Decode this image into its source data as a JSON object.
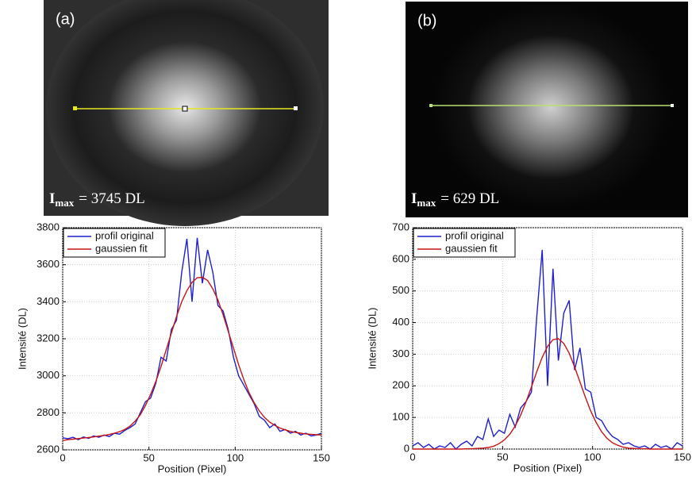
{
  "panels": [
    {
      "label": "(a)",
      "imax_symbol": "I",
      "imax_sub": "max",
      "imax_text": "= 3745 DL"
    },
    {
      "label": "(b)",
      "imax_symbol": "I",
      "imax_sub": "max",
      "imax_text": "= 629 DL"
    }
  ],
  "chart_data": [
    {
      "type": "line",
      "xlabel": "Position (Pixel)",
      "ylabel": "Intensité (DL)",
      "x": [
        0,
        3,
        6,
        9,
        12,
        15,
        18,
        21,
        24,
        27,
        30,
        33,
        36,
        39,
        42,
        45,
        48,
        51,
        54,
        57,
        60,
        63,
        66,
        69,
        72,
        75,
        78,
        81,
        84,
        87,
        90,
        93,
        96,
        99,
        102,
        105,
        108,
        111,
        114,
        117,
        120,
        123,
        126,
        129,
        132,
        135,
        138,
        141,
        144,
        147,
        150
      ],
      "series": [
        {
          "name": "profil original",
          "color": "#1f1fd0",
          "values": [
            2665,
            2660,
            2668,
            2655,
            2670,
            2662,
            2675,
            2668,
            2680,
            2672,
            2690,
            2685,
            2705,
            2720,
            2740,
            2800,
            2860,
            2880,
            2960,
            3100,
            3080,
            3250,
            3300,
            3560,
            3740,
            3400,
            3745,
            3500,
            3680,
            3560,
            3380,
            3350,
            3250,
            3100,
            3000,
            2950,
            2900,
            2850,
            2780,
            2760,
            2720,
            2740,
            2700,
            2710,
            2690,
            2700,
            2680,
            2690,
            2675,
            2680,
            2690
          ]
        },
        {
          "name": "gaussien fit",
          "color": "#c81414",
          "values": [
            2650,
            2655,
            2658,
            2661,
            2664,
            2667,
            2670,
            2674,
            2678,
            2683,
            2690,
            2698,
            2710,
            2728,
            2755,
            2790,
            2840,
            2900,
            2970,
            3050,
            3140,
            3230,
            3320,
            3400,
            3460,
            3505,
            3530,
            3532,
            3515,
            3470,
            3410,
            3330,
            3240,
            3150,
            3060,
            2980,
            2910,
            2855,
            2810,
            2775,
            2750,
            2732,
            2718,
            2708,
            2700,
            2694,
            2690,
            2686,
            2684,
            2682,
            2680
          ]
        }
      ],
      "xlim": [
        0,
        150
      ],
      "xticks": [
        0,
        50,
        100,
        150
      ],
      "ylim": [
        2600,
        3800
      ],
      "yticks": [
        2600,
        2800,
        3000,
        3200,
        3400,
        3600,
        3800
      ],
      "grid": true,
      "legend": "upper-left"
    },
    {
      "type": "line",
      "xlabel": "Position (Pixel)",
      "ylabel": "Intensité (DL)",
      "x": [
        0,
        3,
        6,
        9,
        12,
        15,
        18,
        21,
        24,
        27,
        30,
        33,
        36,
        39,
        42,
        45,
        48,
        51,
        54,
        57,
        60,
        63,
        66,
        69,
        72,
        75,
        78,
        81,
        84,
        87,
        90,
        93,
        96,
        99,
        102,
        105,
        108,
        111,
        114,
        117,
        120,
        123,
        126,
        129,
        132,
        135,
        138,
        141,
        144,
        147,
        150
      ],
      "series": [
        {
          "name": "profil original",
          "color": "#1f1fd0",
          "values": [
            10,
            20,
            5,
            15,
            0,
            10,
            5,
            20,
            0,
            15,
            25,
            10,
            40,
            30,
            95,
            40,
            60,
            50,
            110,
            70,
            130,
            150,
            180,
            420,
            630,
            200,
            570,
            280,
            430,
            470,
            250,
            320,
            190,
            180,
            100,
            90,
            60,
            40,
            30,
            15,
            20,
            10,
            5,
            10,
            0,
            15,
            5,
            10,
            0,
            20,
            10
          ]
        },
        {
          "name": "gaussien fit",
          "color": "#c81414",
          "values": [
            0,
            0,
            0,
            0,
            0,
            0,
            0,
            0,
            0,
            0,
            1,
            1,
            2,
            3,
            5,
            9,
            17,
            29,
            47,
            73,
            107,
            149,
            196,
            245,
            290,
            325,
            346,
            349,
            334,
            303,
            260,
            212,
            164,
            120,
            84,
            55,
            34,
            20,
            12,
            6,
            3,
            2,
            1,
            1,
            0,
            0,
            0,
            0,
            0,
            0,
            0
          ]
        }
      ],
      "xlim": [
        0,
        150
      ],
      "xticks": [
        0,
        50,
        100,
        150
      ],
      "ylim": [
        0,
        700
      ],
      "yticks": [
        0,
        100,
        200,
        300,
        400,
        500,
        600,
        700
      ],
      "grid": true,
      "legend": "upper-left"
    }
  ]
}
